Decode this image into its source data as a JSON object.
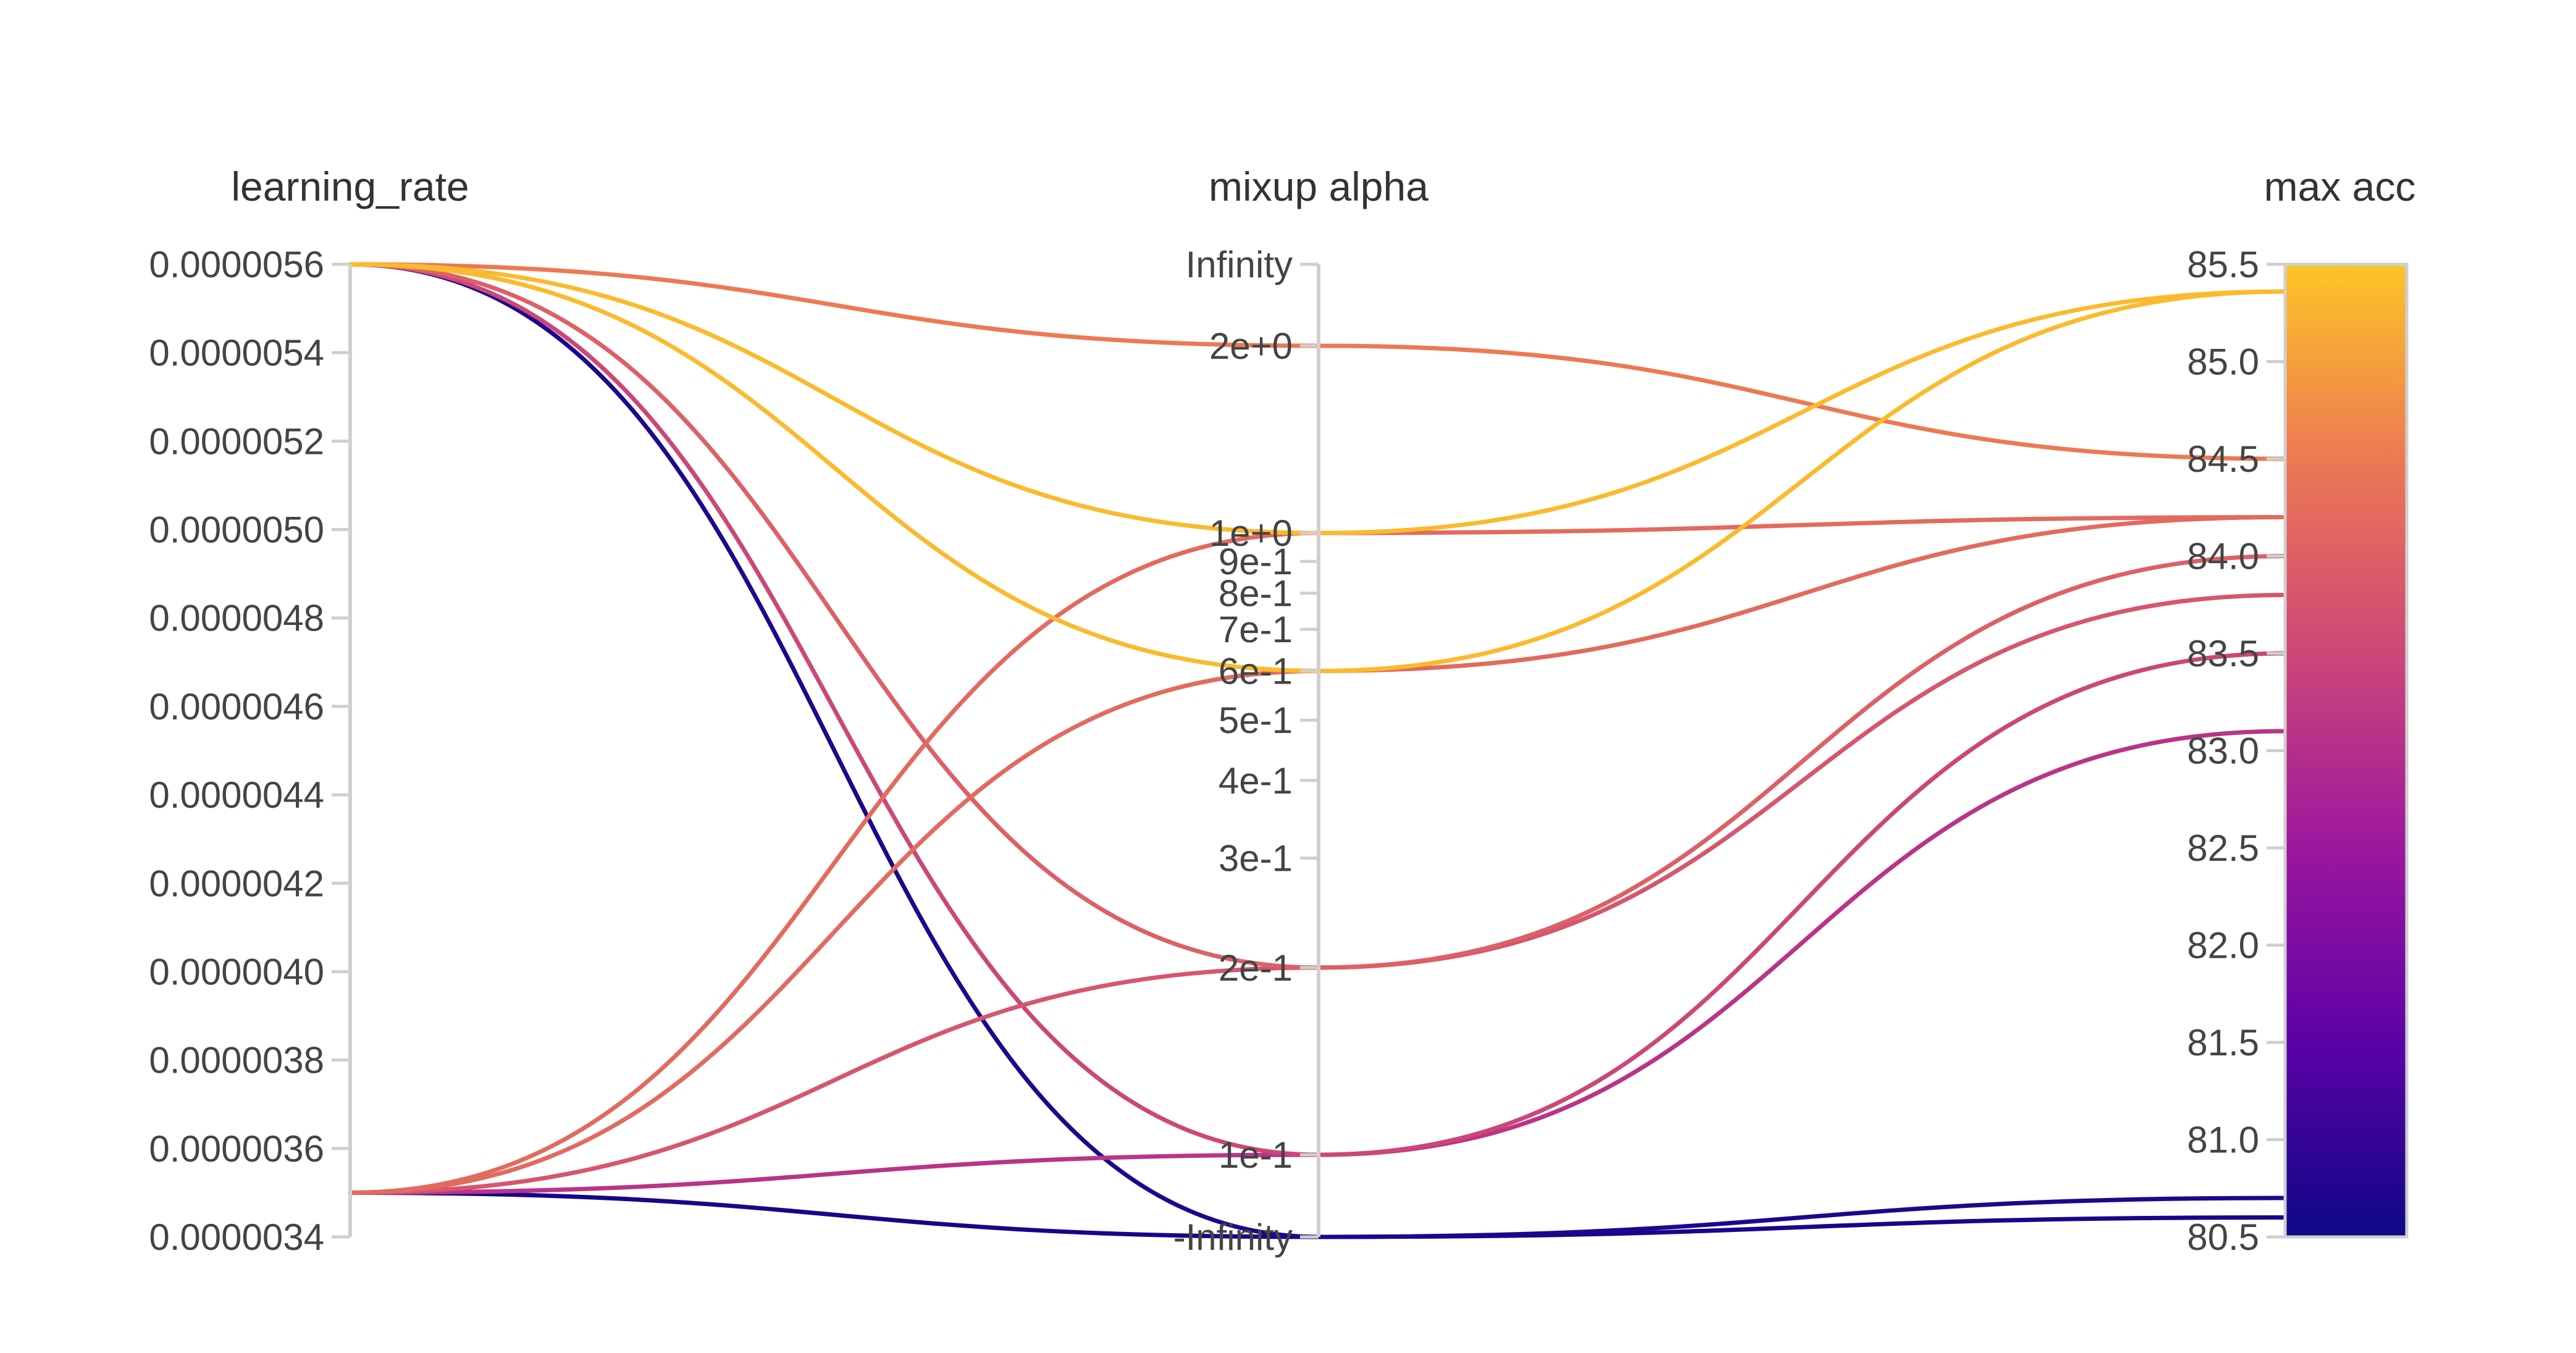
{
  "chart_data": {
    "type": "parallel_coordinates",
    "axes": [
      {
        "key": "learning_rate",
        "label": "learning_rate",
        "scale": "linear",
        "range": [
          3.4e-06,
          5.6e-06
        ],
        "ticks": [
          "0.0000056",
          "0.0000054",
          "0.0000052",
          "0.0000050",
          "0.0000048",
          "0.0000046",
          "0.0000044",
          "0.0000042",
          "0.0000040",
          "0.0000038",
          "0.0000036",
          "0.0000034"
        ]
      },
      {
        "key": "mixup_alpha",
        "label": "mixup alpha",
        "scale": "log",
        "range": [
          0.1,
          2
        ],
        "ticks": [
          "Infinity",
          "2e+0",
          "1e+0",
          "9e-1",
          "8e-1",
          "7e-1",
          "6e-1",
          "5e-1",
          "4e-1",
          "3e-1",
          "2e-1",
          "1e-1",
          "-Infinity"
        ]
      },
      {
        "key": "max_acc",
        "label": "max acc",
        "scale": "linear",
        "range": [
          80.5,
          85.5
        ],
        "ticks": [
          "85.5",
          "85.0",
          "84.5",
          "84.0",
          "83.5",
          "83.0",
          "82.5",
          "82.0",
          "81.5",
          "81.0",
          "80.5"
        ]
      }
    ],
    "runs": [
      {
        "learning_rate": 5.6e-06,
        "mixup_alpha": 2,
        "max_acc": 84.5
      },
      {
        "learning_rate": 5.6e-06,
        "mixup_alpha": 1,
        "max_acc": 85.36
      },
      {
        "learning_rate": 5.6e-06,
        "mixup_alpha": 0.6,
        "max_acc": 85.36
      },
      {
        "learning_rate": 5.6e-06,
        "mixup_alpha": 0.2,
        "max_acc": 84.0
      },
      {
        "learning_rate": 5.6e-06,
        "mixup_alpha": 0.1,
        "max_acc": 83.5
      },
      {
        "learning_rate": 5.6e-06,
        "mixup_alpha": "-Infinity",
        "max_acc": 80.7
      },
      {
        "learning_rate": 3.5e-06,
        "mixup_alpha": 1,
        "max_acc": 84.2
      },
      {
        "learning_rate": 3.5e-06,
        "mixup_alpha": 0.6,
        "max_acc": 84.2
      },
      {
        "learning_rate": 3.5e-06,
        "mixup_alpha": 0.2,
        "max_acc": 83.8
      },
      {
        "learning_rate": 3.5e-06,
        "mixup_alpha": 0.1,
        "max_acc": 83.1
      },
      {
        "learning_rate": 3.5e-06,
        "mixup_alpha": "-Infinity",
        "max_acc": 80.6
      }
    ],
    "color_scale": {
      "axis": "max_acc",
      "min": 80.5,
      "max": 85.5,
      "stops": [
        "#0d0887",
        "#6a00a8",
        "#b12a90",
        "#e16462",
        "#fca636",
        "#f0f921"
      ]
    }
  }
}
